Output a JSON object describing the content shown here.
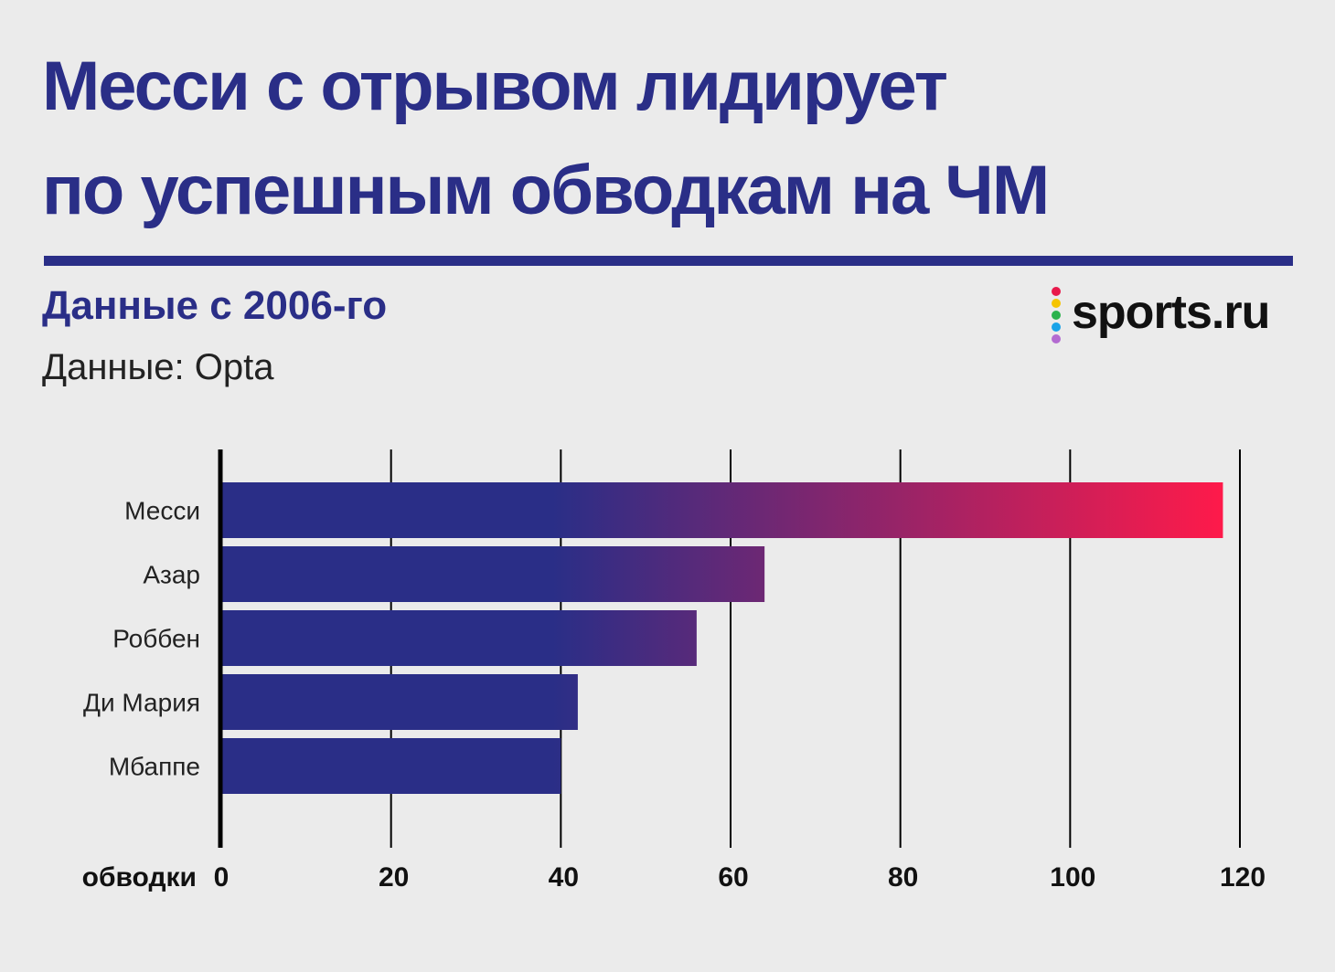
{
  "header": {
    "title_line1": "Месси с отрывом лидирует",
    "title_line2": "по успешным обводкам на ЧМ",
    "subtitle": "Данные с 2006-го",
    "source": "Данные: Opta"
  },
  "logo": {
    "text": "sports.ru",
    "dot_colors": [
      "#e8194b",
      "#f5c400",
      "#2bb24c",
      "#1aa3e8",
      "#b36bd1"
    ]
  },
  "colors": {
    "brand": "#2a2e87",
    "gradient_end": "#ff1a4a"
  },
  "chart_data": {
    "type": "bar",
    "orientation": "horizontal",
    "categories": [
      "Месси",
      "Азар",
      "Роббен",
      "Ди Мария",
      "Мбаппе"
    ],
    "values": [
      118,
      64,
      56,
      42,
      40
    ],
    "xlabel": "обводки",
    "xlim": [
      0,
      120
    ],
    "xticks": [
      0,
      20,
      40,
      60,
      80,
      100,
      120
    ],
    "grid": true
  }
}
